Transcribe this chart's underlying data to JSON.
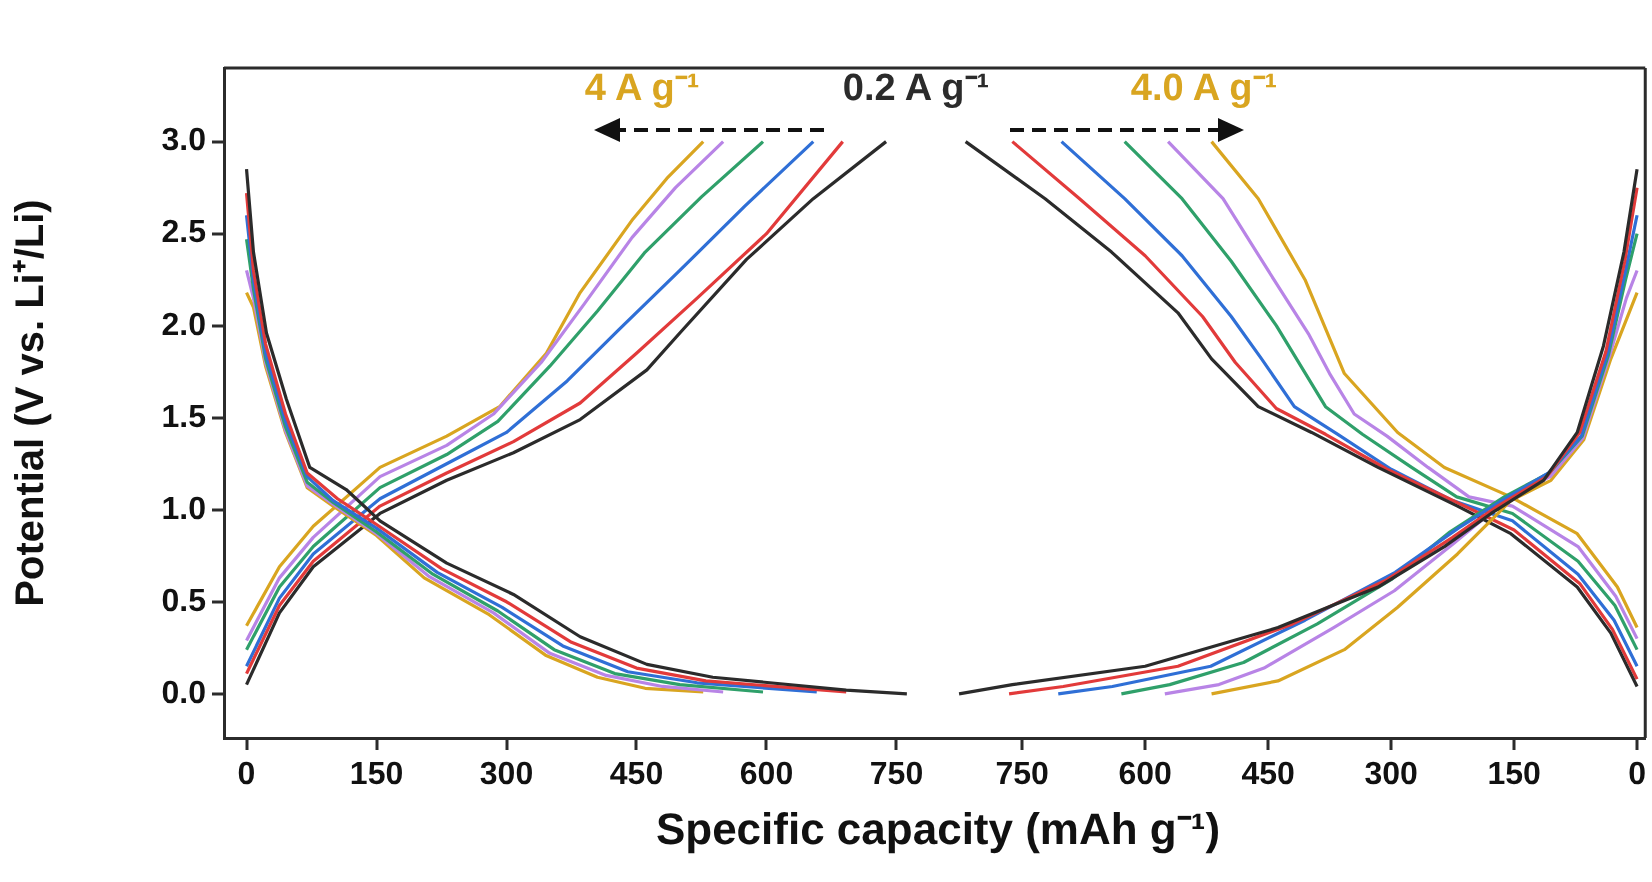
{
  "chart_data": [
    {
      "type": "line",
      "ylabel": "Potential (V vs. Li⁺/Li)",
      "xlabel": "Specific capacity (mAh g⁻¹)",
      "xlim": [
        -26,
        791
      ],
      "xticks": [
        0,
        150,
        300,
        450,
        600,
        750
      ],
      "ylim": [
        -0.24,
        3.4
      ],
      "yticks": [
        {
          "value": 0,
          "label": "0.0"
        },
        {
          "value": 0.5,
          "label": "0.5"
        },
        {
          "value": 1,
          "label": "1.0"
        },
        {
          "value": 1.5,
          "label": "1.5"
        },
        {
          "value": 2,
          "label": "2.0"
        },
        {
          "value": 2.5,
          "label": "2.5"
        },
        {
          "value": 3,
          "label": "3.0"
        }
      ],
      "grid": false,
      "marker": "none",
      "annotations": [
        "4 A g⁻¹",
        "0.2 A g⁻¹"
      ],
      "series": [
        {
          "color": "#2b2b2b",
          "x": [
            0,
            8,
            23,
            46,
            73,
            115,
            154,
            231,
            308,
            385,
            462,
            538,
            692,
            762
          ],
          "values": [
            2.85,
            2.4,
            1.96,
            1.6,
            1.23,
            1.11,
            0.94,
            0.71,
            0.54,
            0.31,
            0.16,
            0.09,
            0.02,
            0.0
          ]
        },
        {
          "color": "#e23a3a",
          "x": [
            0,
            8,
            22,
            45,
            70,
            105,
            150,
            225,
            300,
            375,
            450,
            530,
            692
          ],
          "values": [
            2.72,
            2.3,
            1.9,
            1.52,
            1.2,
            1.06,
            0.92,
            0.68,
            0.5,
            0.28,
            0.14,
            0.07,
            0.01
          ]
        },
        {
          "color": "#2f6fd6",
          "x": [
            0,
            8,
            22,
            45,
            70,
            100,
            150,
            220,
            295,
            365,
            440,
            520,
            658
          ],
          "values": [
            2.6,
            2.25,
            1.85,
            1.48,
            1.18,
            1.05,
            0.9,
            0.66,
            0.47,
            0.26,
            0.12,
            0.06,
            0.01
          ]
        },
        {
          "color": "#2fa06a",
          "x": [
            0,
            8,
            22,
            45,
            70,
            100,
            150,
            215,
            290,
            355,
            425,
            500,
            596
          ],
          "values": [
            2.47,
            2.2,
            1.82,
            1.45,
            1.15,
            1.04,
            0.88,
            0.65,
            0.45,
            0.24,
            0.11,
            0.05,
            0.01
          ]
        },
        {
          "color": "#b884e6",
          "x": [
            0,
            8,
            22,
            45,
            70,
            100,
            150,
            210,
            285,
            350,
            415,
            480,
            550
          ],
          "values": [
            2.3,
            2.15,
            1.8,
            1.43,
            1.13,
            1.03,
            0.87,
            0.64,
            0.44,
            0.22,
            0.1,
            0.04,
            0.01
          ]
        },
        {
          "color": "#d9a520",
          "x": [
            0,
            8,
            22,
            45,
            70,
            100,
            150,
            205,
            280,
            345,
            405,
            460,
            527
          ],
          "values": [
            2.18,
            2.1,
            1.78,
            1.42,
            1.12,
            1.02,
            0.86,
            0.63,
            0.43,
            0.21,
            0.09,
            0.03,
            0.01
          ]
        },
        {
          "color": "#2b2b2b",
          "x": [
            0,
            38,
            77,
            154,
            231,
            308,
            385,
            462,
            500,
            577,
            654,
            738
          ],
          "values": [
            0.05,
            0.44,
            0.69,
            0.98,
            1.16,
            1.31,
            1.49,
            1.76,
            1.96,
            2.36,
            2.69,
            3.0
          ]
        },
        {
          "color": "#e23a3a",
          "x": [
            0,
            38,
            77,
            154,
            231,
            308,
            385,
            450,
            520,
            600,
            688
          ],
          "values": [
            0.11,
            0.48,
            0.72,
            1.02,
            1.2,
            1.37,
            1.58,
            1.85,
            2.15,
            2.5,
            3.0
          ]
        },
        {
          "color": "#2f6fd6",
          "x": [
            0,
            38,
            77,
            154,
            231,
            300,
            370,
            430,
            500,
            575,
            654
          ],
          "values": [
            0.15,
            0.52,
            0.76,
            1.06,
            1.25,
            1.42,
            1.7,
            1.98,
            2.3,
            2.65,
            3.0
          ]
        },
        {
          "color": "#2fa06a",
          "x": [
            0,
            38,
            77,
            154,
            231,
            290,
            350,
            405,
            460,
            525,
            596
          ],
          "values": [
            0.24,
            0.58,
            0.8,
            1.12,
            1.3,
            1.48,
            1.78,
            2.08,
            2.4,
            2.7,
            3.0
          ]
        },
        {
          "color": "#b884e6",
          "x": [
            0,
            38,
            77,
            154,
            231,
            285,
            340,
            390,
            445,
            495,
            550
          ],
          "values": [
            0.29,
            0.63,
            0.85,
            1.18,
            1.35,
            1.52,
            1.8,
            2.12,
            2.48,
            2.75,
            3.0
          ]
        },
        {
          "color": "#d9a520",
          "x": [
            0,
            38,
            77,
            154,
            231,
            292,
            346,
            385,
            446,
            485,
            527
          ],
          "values": [
            0.37,
            0.69,
            0.91,
            1.23,
            1.4,
            1.56,
            1.85,
            2.18,
            2.58,
            2.8,
            3.0
          ]
        }
      ]
    },
    {
      "type": "line",
      "tick_labels": "x",
      "xlim": [
        860,
        -10
      ],
      "xticks": [
        750,
        600,
        450,
        300,
        150,
        0
      ],
      "ylim": [
        -0.24,
        3.4
      ],
      "grid": false,
      "marker": "none",
      "annotations": [
        "4.0 A g⁻¹"
      ],
      "series": [
        {
          "color": "#2b2b2b",
          "x": [
            827,
            762,
            600,
            438,
            316,
            235,
            178,
            114,
            73,
            41,
            16,
            0
          ],
          "values": [
            0.0,
            0.05,
            0.15,
            0.36,
            0.58,
            0.8,
            0.98,
            1.16,
            1.42,
            1.89,
            2.4,
            2.85
          ]
        },
        {
          "color": "#e23a3a",
          "x": [
            766,
            700,
            560,
            420,
            305,
            225,
            170,
            110,
            70,
            38,
            15,
            0
          ],
          "values": [
            0.0,
            0.04,
            0.15,
            0.38,
            0.62,
            0.85,
            1.02,
            1.18,
            1.42,
            1.86,
            2.35,
            2.75
          ]
        },
        {
          "color": "#2f6fd6",
          "x": [
            706,
            640,
            520,
            405,
            295,
            218,
            165,
            108,
            68,
            36,
            14,
            0
          ],
          "values": [
            0.0,
            0.04,
            0.15,
            0.4,
            0.66,
            0.9,
            1.05,
            1.2,
            1.4,
            1.85,
            2.3,
            2.6
          ]
        },
        {
          "color": "#2fa06a",
          "x": [
            629,
            570,
            480,
            390,
            300,
            228,
            162,
            107,
            67,
            35,
            14,
            0
          ],
          "values": [
            0.0,
            0.05,
            0.17,
            0.38,
            0.62,
            0.88,
            1.07,
            1.2,
            1.4,
            1.84,
            2.25,
            2.5
          ]
        },
        {
          "color": "#b884e6",
          "x": [
            576,
            510,
            455,
            370,
            296,
            223,
            158,
            106,
            66,
            34,
            13,
            0
          ],
          "values": [
            0.0,
            0.05,
            0.14,
            0.36,
            0.56,
            0.82,
            1.06,
            1.18,
            1.39,
            1.83,
            2.15,
            2.3
          ]
        },
        {
          "color": "#d9a520",
          "x": [
            519,
            438,
            357,
            292,
            219,
            154,
            105,
            65,
            32,
            0
          ],
          "values": [
            0.0,
            0.07,
            0.24,
            0.47,
            0.76,
            1.05,
            1.16,
            1.38,
            1.82,
            2.18
          ]
        },
        {
          "color": "#2b2b2b",
          "x": [
            819,
            722,
            641,
            560,
            519,
            462,
            397,
            316,
            219,
            154,
            73,
            32,
            0
          ],
          "values": [
            3.0,
            2.69,
            2.4,
            2.07,
            1.82,
            1.56,
            1.42,
            1.23,
            1.02,
            0.87,
            0.58,
            0.33,
            0.04
          ]
        },
        {
          "color": "#e23a3a",
          "x": [
            762,
            680,
            600,
            530,
            490,
            440,
            380,
            305,
            215,
            150,
            70,
            30,
            0
          ],
          "values": [
            3.0,
            2.69,
            2.38,
            2.05,
            1.8,
            1.55,
            1.41,
            1.22,
            1.03,
            0.89,
            0.6,
            0.35,
            0.08
          ]
        },
        {
          "color": "#2f6fd6",
          "x": [
            702,
            625,
            555,
            495,
            458,
            418,
            365,
            300,
            225,
            152,
            72,
            28,
            0
          ],
          "values": [
            3.0,
            2.69,
            2.38,
            2.05,
            1.82,
            1.56,
            1.41,
            1.22,
            1.05,
            0.94,
            0.65,
            0.4,
            0.15
          ]
        },
        {
          "color": "#2fa06a",
          "x": [
            625,
            555,
            495,
            440,
            410,
            380,
            335,
            275,
            220,
            152,
            72,
            27,
            0
          ],
          "values": [
            3.0,
            2.69,
            2.35,
            2.0,
            1.78,
            1.56,
            1.41,
            1.23,
            1.07,
            0.98,
            0.72,
            0.48,
            0.24
          ]
        },
        {
          "color": "#b884e6",
          "x": [
            572,
            505,
            450,
            400,
            375,
            345,
            305,
            255,
            205,
            152,
            72,
            26,
            0
          ],
          "values": [
            3.0,
            2.69,
            2.3,
            1.95,
            1.74,
            1.52,
            1.4,
            1.23,
            1.07,
            1.02,
            0.8,
            0.53,
            0.3
          ]
        },
        {
          "color": "#d9a520",
          "x": [
            519,
            462,
            405,
            357,
            292,
            235,
            154,
            73,
            24,
            0
          ],
          "values": [
            3.0,
            2.69,
            2.25,
            1.74,
            1.42,
            1.23,
            1.07,
            0.87,
            0.58,
            0.36
          ]
        }
      ]
    }
  ]
}
